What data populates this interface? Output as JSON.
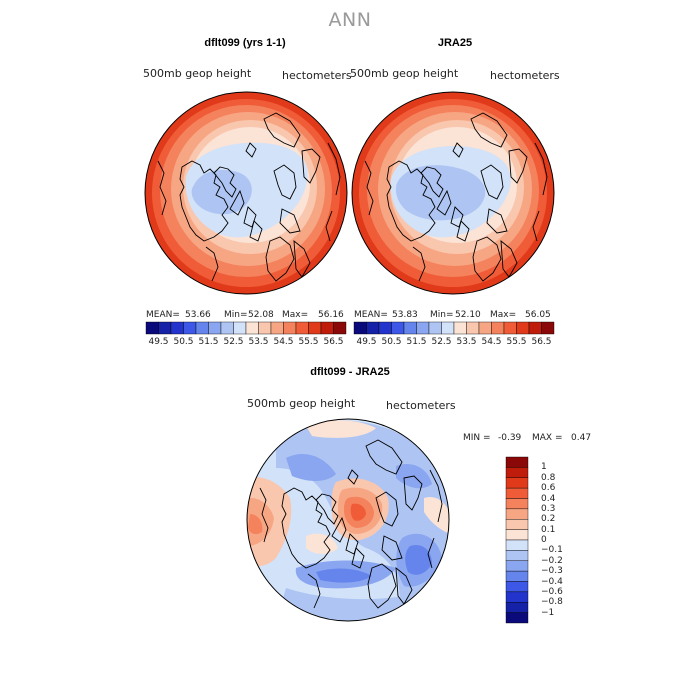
{
  "title": "ANN",
  "panels": [
    {
      "title": "dflt099 (yrs 1-1)",
      "variable": "500mb geop height",
      "units": "hectometers",
      "mean_label": "MEAN=",
      "mean": "53.66",
      "min_label": "Min=",
      "min": "52.08",
      "max_label": "Max=",
      "max": "56.16"
    },
    {
      "title": "JRA25",
      "variable": "500mb geop height",
      "units": "hectometers",
      "mean_label": "MEAN=",
      "mean": "53.83",
      "min_label": "Min=",
      "min": "52.10",
      "max_label": "Max=",
      "max": "56.05"
    }
  ],
  "colorbar_top": {
    "labels": [
      "49.5",
      "50.5",
      "51.5",
      "52.5",
      "53.5",
      "54.5",
      "55.5",
      "56.5"
    ],
    "colors": [
      "#0a0a7a",
      "#1521a6",
      "#2334cc",
      "#3d58e6",
      "#6585ec",
      "#8aa6f0",
      "#aec5f4",
      "#d2e2f8",
      "#fbe3d6",
      "#f9c6ae",
      "#f7a684",
      "#f4825d",
      "#ef5c37",
      "#e03a1a",
      "#c01c0c",
      "#8a0808"
    ]
  },
  "diff_panel": {
    "title": "dflt099 - JRA25",
    "variable": "500mb geop height",
    "units": "hectometers",
    "min_label": "MIN =",
    "min": "-0.39",
    "max_label": "MAX =",
    "max": "0.47"
  },
  "colorbar_diff": {
    "labels": [
      "1",
      "0.8",
      "0.6",
      "0.4",
      "0.3",
      "0.2",
      "0.1",
      "0",
      "−0.1",
      "−0.2",
      "−0.3",
      "−0.4",
      "−0.6",
      "−0.8",
      "−1"
    ],
    "colors": [
      "#8a0808",
      "#c01c0c",
      "#e03a1a",
      "#ef5c37",
      "#f4825d",
      "#f7a684",
      "#f9c6ae",
      "#fbe3d6",
      "#d2e2f8",
      "#aec5f4",
      "#8aa6f0",
      "#6585ec",
      "#3d58e6",
      "#2334cc",
      "#1521a6",
      "#0a0a7a"
    ]
  },
  "colors": {
    "title_gray": "#9a9a9a",
    "land_outline": "#000000"
  }
}
